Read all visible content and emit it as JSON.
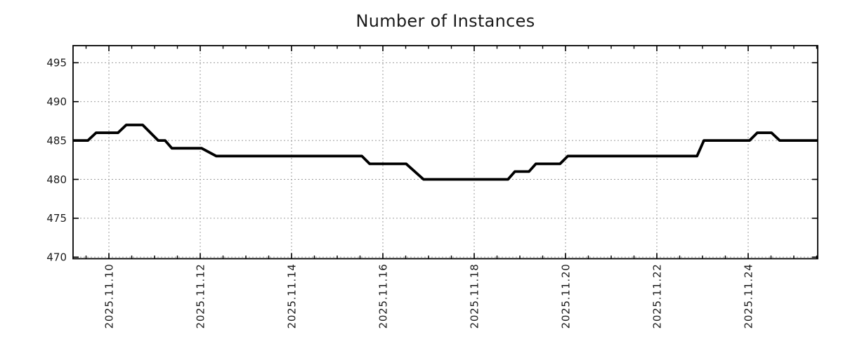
{
  "page": {
    "background": "#ffffff"
  },
  "chart_data": {
    "type": "line",
    "title": "Number of Instances",
    "series_name": "number-of-instances",
    "line_color": "#000000",
    "grid_color": "#9c9c9c",
    "axis_color": "#000000",
    "text_color": "#1a1a1a",
    "xlabel": "",
    "ylabel": "",
    "x_unit": "day of November 2025 (fractional day-of-month)",
    "xlim": [
      9.215,
      25.523
    ],
    "ylim": [
      469.8,
      497.2
    ],
    "y_ticks": [
      470,
      475,
      480,
      485,
      490,
      495
    ],
    "x_ticks": [
      {
        "value": 10,
        "label": "2025.11.10"
      },
      {
        "value": 12,
        "label": "2025.11.12"
      },
      {
        "value": 14,
        "label": "2025.11.14"
      },
      {
        "value": 16,
        "label": "2025.11.16"
      },
      {
        "value": 18,
        "label": "2025.11.18"
      },
      {
        "value": 20,
        "label": "2025.11.20"
      },
      {
        "value": 22,
        "label": "2025.11.22"
      },
      {
        "value": 24,
        "label": "2025.11.24"
      }
    ],
    "x_minor_step": 0.5,
    "grid": "dotted at major ticks",
    "legend": "none",
    "points": [
      [
        9.215,
        485
      ],
      [
        9.54,
        485
      ],
      [
        9.72,
        486
      ],
      [
        10.2,
        486
      ],
      [
        10.38,
        487
      ],
      [
        10.74,
        487
      ],
      [
        11.08,
        485
      ],
      [
        11.23,
        485
      ],
      [
        11.38,
        484
      ],
      [
        12.03,
        484
      ],
      [
        12.35,
        483
      ],
      [
        15.54,
        483
      ],
      [
        15.71,
        482
      ],
      [
        16.51,
        482
      ],
      [
        16.89,
        480
      ],
      [
        18.74,
        480
      ],
      [
        18.89,
        481
      ],
      [
        19.2,
        481
      ],
      [
        19.35,
        482
      ],
      [
        19.88,
        482
      ],
      [
        20.05,
        483
      ],
      [
        22.88,
        483
      ],
      [
        23.03,
        485
      ],
      [
        24.03,
        485
      ],
      [
        24.2,
        486
      ],
      [
        24.51,
        486
      ],
      [
        24.69,
        485
      ],
      [
        25.523,
        485
      ]
    ]
  }
}
